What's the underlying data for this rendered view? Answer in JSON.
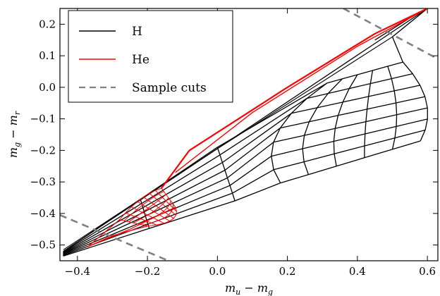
{
  "chart_data": {
    "type": "line",
    "title": "",
    "xlabel": "m_u − m_g",
    "ylabel": "m_g − m_r",
    "xlabel_parts": {
      "m1": "m",
      "s1": "u",
      "op": " − ",
      "m2": "m",
      "s2": "g"
    },
    "ylabel_parts": {
      "m1": "m",
      "s1": "g",
      "op": " − ",
      "m2": "m",
      "s2": "r"
    },
    "xlim": [
      -0.45,
      0.63
    ],
    "ylim": [
      -0.55,
      0.25
    ],
    "xticks": [
      -0.4,
      -0.2,
      0.0,
      0.2,
      0.4,
      0.6
    ],
    "xtick_labels": [
      "−0.4",
      "−0.2",
      "0.0",
      "0.2",
      "0.4",
      "0.6"
    ],
    "yticks": [
      -0.5,
      -0.4,
      -0.3,
      -0.2,
      -0.1,
      0.0,
      0.1,
      0.2
    ],
    "ytick_labels": [
      "−0.5",
      "−0.4",
      "−0.3",
      "−0.2",
      "−0.1",
      "0.0",
      "0.1",
      "0.2"
    ],
    "grid": false,
    "legend_position": "top-left",
    "legend": [
      {
        "label": "H",
        "color": "#000000",
        "style": "solid"
      },
      {
        "label": "He",
        "color": "#ff0000",
        "style": "solid"
      },
      {
        "label": "Sample cuts",
        "color": "#808080",
        "style": "dashed"
      }
    ],
    "series": [
      {
        "name": "H",
        "type": "grid",
        "color": "#000000",
        "corners": {
          "tail_top": [
            -0.44,
            -0.52
          ],
          "tail_bottom": [
            -0.44,
            -0.535
          ],
          "far_top": [
            0.6,
            0.25
          ],
          "outer_top": [
            0.53,
            0.08
          ],
          "outer_bottom": [
            0.58,
            -0.17
          ],
          "inner_top": [
            0.27,
            0.0
          ],
          "inner_bottom": [
            0.1,
            -0.33
          ],
          "bend_top": [
            0.0,
            -0.19
          ],
          "bend_bottom": [
            0.05,
            -0.36
          ],
          "ridge_bottom": [
            0.5,
            -0.3
          ]
        }
      },
      {
        "name": "He",
        "type": "grid",
        "color": "#ff0000",
        "corners": {
          "tail": [
            -0.37,
            -0.505
          ],
          "top": [
            -0.16,
            -0.32
          ],
          "far_top": [
            0.6,
            0.25
          ],
          "left": [
            -0.28,
            -0.42
          ],
          "right": [
            -0.12,
            -0.38
          ],
          "bottom": [
            -0.2,
            -0.44
          ]
        }
      },
      {
        "name": "Sample cuts",
        "type": "line",
        "color": "#808080",
        "style": "dashed",
        "segments": [
          {
            "x": [
              0.36,
              0.63
            ],
            "y": [
              0.25,
              0.09
            ]
          },
          {
            "x": [
              -0.45,
              -0.14
            ],
            "y": [
              -0.405,
              -0.55
            ]
          }
        ]
      }
    ]
  }
}
